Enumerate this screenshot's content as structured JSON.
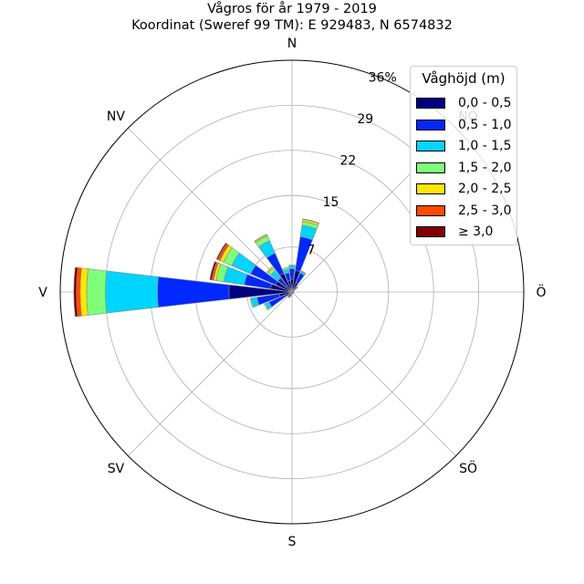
{
  "chart": {
    "title_line1": "Vågros för år 1979 - 2019",
    "title_line2": "Koordinat (Sweref 99 TM): E 929483, N 6574832"
  },
  "chart_data": {
    "type": "windrose",
    "title": "Vågros för år 1979 - 2019",
    "subtitle": "Koordinat (Sweref 99 TM): E 929483, N 6574832",
    "directions": [
      "N",
      "NV",
      "V",
      "SV",
      "S",
      "SÖ",
      "Ö",
      "NÖ"
    ],
    "radial_tick_labels": [
      "7",
      "15",
      "22",
      "29",
      "36%"
    ],
    "radial_ticks": [
      7,
      15,
      22,
      29,
      36
    ],
    "rmax": 36,
    "legend_title": "Våghöjd (m)",
    "legend_location": "upper right",
    "bins": [
      {
        "label": "0,0 - 0,5",
        "color": "#000080"
      },
      {
        "label": "0,5 - 1,0",
        "color": "#0028ff"
      },
      {
        "label": "1,0 - 1,5",
        "color": "#00d4ff"
      },
      {
        "label": "1,5 - 2,0",
        "color": "#7dff7a"
      },
      {
        "label": "2,0 - 2,5",
        "color": "#ffe600"
      },
      {
        "label": "2,5 - 3,0",
        "color": "#ff4a00"
      },
      {
        "label": "≥ 3,0",
        "color": "#800000"
      }
    ],
    "sectors": [
      {
        "direction_deg": 0,
        "values": [
          2.0,
          1.6,
          0.5,
          0.1,
          0.0,
          0.0,
          0.0
        ]
      },
      {
        "direction_deg": 15,
        "values": [
          3.4,
          5.3,
          1.8,
          0.6,
          0.3,
          0.1,
          0.0
        ]
      },
      {
        "direction_deg": 30,
        "values": [
          1.6,
          1.6,
          0.3,
          0.1,
          0.0,
          0.0,
          0.0
        ]
      },
      {
        "direction_deg": 45,
        "values": [
          0.7,
          0.3,
          0.1,
          0.0,
          0.0,
          0.0,
          0.0
        ]
      },
      {
        "direction_deg": 60,
        "values": [
          0.3,
          0.1,
          0.0,
          0.0,
          0.0,
          0.0,
          0.0
        ]
      },
      {
        "direction_deg": 75,
        "values": [
          0.2,
          0.1,
          0.0,
          0.0,
          0.0,
          0.0,
          0.0
        ]
      },
      {
        "direction_deg": 90,
        "values": [
          0.2,
          0.1,
          0.0,
          0.0,
          0.0,
          0.0,
          0.0
        ]
      },
      {
        "direction_deg": 105,
        "values": [
          0.2,
          0.1,
          0.0,
          0.0,
          0.0,
          0.0,
          0.0
        ]
      },
      {
        "direction_deg": 120,
        "values": [
          0.2,
          0.1,
          0.0,
          0.0,
          0.0,
          0.0,
          0.0
        ]
      },
      {
        "direction_deg": 135,
        "values": [
          0.2,
          0.1,
          0.0,
          0.0,
          0.0,
          0.0,
          0.0
        ]
      },
      {
        "direction_deg": 150,
        "values": [
          0.2,
          0.1,
          0.0,
          0.0,
          0.0,
          0.0,
          0.0
        ]
      },
      {
        "direction_deg": 165,
        "values": [
          0.2,
          0.1,
          0.0,
          0.0,
          0.0,
          0.0,
          0.0
        ]
      },
      {
        "direction_deg": 180,
        "values": [
          0.2,
          0.1,
          0.0,
          0.0,
          0.0,
          0.0,
          0.0
        ]
      },
      {
        "direction_deg": 195,
        "values": [
          0.4,
          0.3,
          0.0,
          0.0,
          0.0,
          0.0,
          0.0
        ]
      },
      {
        "direction_deg": 210,
        "values": [
          0.5,
          0.4,
          0.1,
          0.0,
          0.0,
          0.0,
          0.0
        ]
      },
      {
        "direction_deg": 225,
        "values": [
          0.4,
          0.3,
          0.1,
          0.0,
          0.0,
          0.0,
          0.0
        ]
      },
      {
        "direction_deg": 240,
        "values": [
          1.2,
          2.7,
          0.6,
          0.2,
          0.0,
          0.0,
          0.0
        ]
      },
      {
        "direction_deg": 255,
        "values": [
          2.0,
          3.5,
          0.9,
          0.2,
          0.0,
          0.0,
          0.0
        ]
      },
      {
        "direction_deg": 270,
        "values": [
          9.8,
          11.1,
          8.1,
          2.9,
          1.0,
          0.6,
          0.4
        ]
      },
      {
        "direction_deg": 285,
        "values": [
          3.4,
          4.1,
          3.2,
          1.2,
          0.4,
          0.3,
          0.3
        ]
      },
      {
        "direction_deg": 300,
        "values": [
          2.8,
          4.2,
          3.2,
          1.4,
          0.6,
          0.4,
          0.2
        ]
      },
      {
        "direction_deg": 315,
        "values": [
          1.2,
          1.6,
          1.4,
          0.6,
          0.2,
          0.0,
          0.0
        ]
      },
      {
        "direction_deg": 330,
        "values": [
          3.2,
          3.4,
          2.1,
          0.8,
          0.2,
          0.1,
          0.0
        ]
      },
      {
        "direction_deg": 345,
        "values": [
          1.8,
          1.2,
          0.6,
          0.3,
          0.0,
          0.0,
          0.0
        ]
      }
    ]
  }
}
